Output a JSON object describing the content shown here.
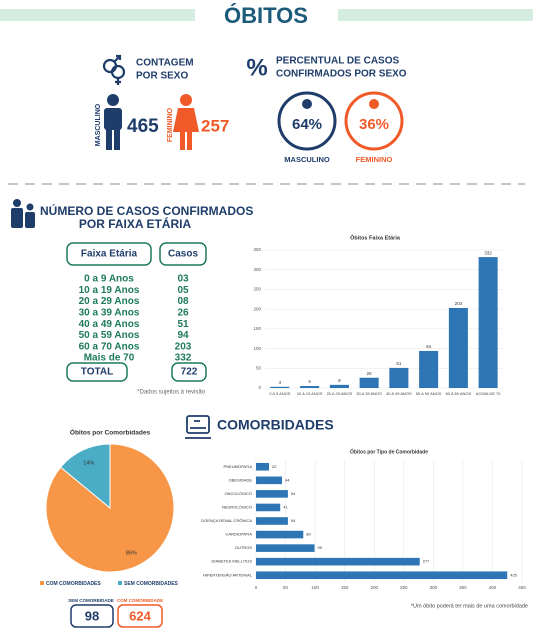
{
  "header": {
    "title": "ÓBITOS"
  },
  "sex_count": {
    "title_line1": "CONTAGEM",
    "title_line2": "POR SEXO",
    "male_label": "MASCULINO",
    "male_value": 465,
    "female_label": "FEMININO",
    "female_value": 257
  },
  "sex_percent": {
    "symbol": "%",
    "title_line1": "PERCENTUAL DE CASOS",
    "title_line2": "CONFIRMADOS POR SEXO",
    "male_value": "64%",
    "male_label": "MASCULINO",
    "female_value": "36%",
    "female_label": "FEMININO"
  },
  "age_section": {
    "title_line1": "NÚMERO DE CASOS CONFIRMADOS",
    "title_line2": "POR FAIXA ETÁRIA"
  },
  "age_table": {
    "headers": [
      "Faixa Etária",
      "Casos"
    ],
    "rows": [
      [
        "0 a 9 Anos",
        "03"
      ],
      [
        "10 a 19 Anos",
        "05"
      ],
      [
        "20 a 29 Anos",
        "08"
      ],
      [
        "30 a 39 Anos",
        "26"
      ],
      [
        "40 a 49 Anos",
        "51"
      ],
      [
        "50 a 59 Anos",
        "94"
      ],
      [
        "60 a 70 Anos",
        "203"
      ],
      [
        "Mais de 70",
        "332"
      ]
    ],
    "total_label": "TOTAL",
    "total_value": 722,
    "note": "*Dados sujeitos à revisão"
  },
  "comorbidities_section": {
    "title": "COMORBIDADES",
    "note": "*Um óbito poderá ter mais de uma comorbidade",
    "without_label": "SEM COMORBIDADE",
    "without_value": 98,
    "with_label": "COM COMORBIDADE",
    "with_value": 624
  },
  "chart_data": [
    {
      "type": "bar",
      "title": "Óbitos Faixa Etária",
      "categories": [
        "0 A 9 ANOS",
        "10 A 19 ANOS",
        "20 A 29 ANOS",
        "30 A 39 ANOS",
        "40 A 49 ANOS",
        "50 A 59 ANOS",
        "60 A 69 ANOS",
        "ACIMA DE 70"
      ],
      "values": [
        3,
        5,
        8,
        26,
        51,
        94,
        203,
        332
      ],
      "color": "#2e75b6",
      "ylim": [
        0,
        350
      ],
      "yticks": [
        0,
        50,
        100,
        150,
        200,
        250,
        300,
        350
      ],
      "grid": true
    },
    {
      "type": "pie",
      "title": "Óbitos por Comorbidades",
      "categories": [
        "COM COMORBIDADES",
        "SEM COMORBIDADES"
      ],
      "values": [
        86,
        14
      ],
      "value_labels": [
        "86%",
        "14%"
      ],
      "colors": [
        "#f79646",
        "#4bacc6"
      ]
    },
    {
      "type": "hbar",
      "title": "Óbitos por Tipo de Comorbidade",
      "categories": [
        "PNEUMOPATIA",
        "OBESIDADE",
        "ONCOLÓGICO",
        "NEUROLÓGICO",
        "DOENÇA RENAL CRÔNICA",
        "CARDIOPATIA",
        "OUTROS",
        "DIABETES MELLITUS",
        "HIPERTENSÃO ARTERIAL"
      ],
      "values": [
        22,
        44,
        54,
        41,
        54,
        80,
        99,
        277,
        425
      ],
      "color": "#2e75b6",
      "xlim": [
        0,
        450
      ],
      "xticks": [
        0,
        50,
        100,
        150,
        200,
        250,
        300,
        350,
        400,
        450
      ],
      "grid": true
    }
  ]
}
